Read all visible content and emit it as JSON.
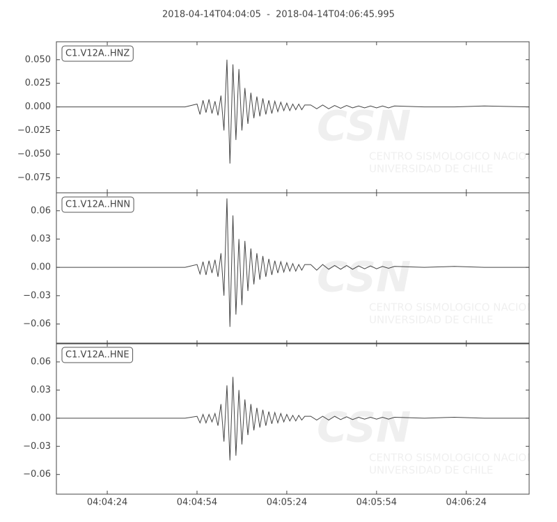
{
  "chart_data": {
    "type": "line",
    "title": "2018-04-14T04:04:05  -  2018-04-14T04:06:45.995",
    "watermark": {
      "logo": "CSN",
      "line1": "CENTRO SISMOLOGICO NACIONAL",
      "line2": "UNIVERSIDAD DE CHILE"
    },
    "xlim": [
      "04:04:07",
      "04:06:45"
    ],
    "xticks": [
      "04:04:24",
      "04:04:54",
      "04:05:24",
      "04:05:54",
      "04:06:24"
    ],
    "x": [
      "04:04:07",
      "04:04:20",
      "04:04:35",
      "04:04:50",
      "04:04:54",
      "04:04:55",
      "04:04:56",
      "04:04:57",
      "04:04:58",
      "04:04:59",
      "04:05:00",
      "04:05:01",
      "04:05:02",
      "04:05:03",
      "04:05:04",
      "04:05:05",
      "04:05:06",
      "04:05:07",
      "04:05:08",
      "04:05:09",
      "04:05:10",
      "04:05:11",
      "04:05:12",
      "04:05:13",
      "04:05:14",
      "04:05:15",
      "04:05:16",
      "04:05:17",
      "04:05:18",
      "04:05:19",
      "04:05:20",
      "04:05:21",
      "04:05:22",
      "04:05:23",
      "04:05:24",
      "04:05:25",
      "04:05:26",
      "04:05:27",
      "04:05:28",
      "04:05:29",
      "04:05:30",
      "04:05:32",
      "04:05:34",
      "04:05:36",
      "04:05:38",
      "04:05:40",
      "04:05:42",
      "04:05:44",
      "04:05:46",
      "04:05:48",
      "04:05:50",
      "04:05:52",
      "04:05:54",
      "04:05:56",
      "04:05:58",
      "04:06:00",
      "04:06:10",
      "04:06:20",
      "04:06:30",
      "04:06:45"
    ],
    "series": [
      {
        "name": "C1.V12A..HNZ",
        "color": "#444444",
        "ylim": [
          -0.091,
          0.069
        ],
        "yticks": [
          {
            "value": 0.05,
            "label": "0.050"
          },
          {
            "value": 0.025,
            "label": "0.025"
          },
          {
            "value": 0,
            "label": "0.000"
          },
          {
            "value": -0.025,
            "label": "−0.025"
          },
          {
            "value": -0.05,
            "label": "−0.050"
          },
          {
            "value": -0.075,
            "label": "−0.075"
          }
        ],
        "values": [
          0,
          0,
          0,
          0,
          0.003,
          -0.008,
          0.007,
          -0.006,
          0.008,
          -0.007,
          0.006,
          -0.009,
          0.012,
          -0.025,
          0.05,
          -0.06,
          0.045,
          -0.035,
          0.04,
          -0.025,
          0.02,
          -0.018,
          0.015,
          -0.012,
          0.011,
          -0.01,
          0.009,
          -0.008,
          0.007,
          -0.007,
          0.006,
          -0.005,
          0.005,
          -0.004,
          0.004,
          -0.004,
          0.003,
          -0.003,
          0.003,
          -0.003,
          0.002,
          0.002,
          -0.002,
          0.002,
          -0.002,
          0.0015,
          -0.0015,
          0.0015,
          -0.001,
          0.001,
          -0.001,
          0.001,
          -0.001,
          0.001,
          -0.001,
          0.001,
          0,
          0,
          0.001,
          0
        ]
      },
      {
        "name": "C1.V12A..HNN",
        "color": "#444444",
        "ylim": [
          -0.081,
          0.079
        ],
        "yticks": [
          {
            "value": 0.06,
            "label": "0.06"
          },
          {
            "value": 0.03,
            "label": "0.03"
          },
          {
            "value": 0,
            "label": "0.00"
          },
          {
            "value": -0.03,
            "label": "−0.03"
          },
          {
            "value": -0.06,
            "label": "−0.06"
          }
        ],
        "values": [
          0,
          0,
          0,
          0,
          0.003,
          -0.007,
          0.006,
          -0.008,
          0.007,
          -0.006,
          0.008,
          -0.01,
          0.015,
          -0.03,
          0.073,
          -0.063,
          0.055,
          -0.05,
          0.03,
          -0.04,
          0.028,
          -0.025,
          0.02,
          -0.018,
          0.015,
          -0.013,
          0.012,
          -0.01,
          0.009,
          -0.008,
          0.007,
          -0.006,
          0.006,
          -0.005,
          0.005,
          -0.004,
          0.004,
          -0.004,
          0.003,
          -0.003,
          0.003,
          0.003,
          -0.003,
          0.003,
          -0.002,
          0.002,
          -0.002,
          0.002,
          -0.002,
          0.0015,
          -0.0015,
          0.0015,
          -0.0015,
          0.001,
          -0.001,
          0.001,
          0,
          0.001,
          0,
          0
        ]
      },
      {
        "name": "C1.V12A..HNE",
        "color": "#444444",
        "ylim": [
          -0.081,
          0.08
        ],
        "yticks": [
          {
            "value": 0.06,
            "label": "0.06"
          },
          {
            "value": 0.03,
            "label": "0.03"
          },
          {
            "value": 0,
            "label": "0.00"
          },
          {
            "value": -0.03,
            "label": "−0.03"
          },
          {
            "value": -0.06,
            "label": "−0.06"
          }
        ],
        "values": [
          0,
          0,
          0,
          0,
          0.002,
          -0.005,
          0.004,
          -0.005,
          0.004,
          -0.004,
          0.005,
          -0.008,
          0.015,
          -0.025,
          0.035,
          -0.045,
          0.044,
          -0.04,
          0.03,
          -0.028,
          0.02,
          -0.018,
          0.015,
          -0.013,
          0.011,
          -0.01,
          0.009,
          -0.008,
          0.007,
          -0.006,
          0.006,
          -0.005,
          0.005,
          -0.004,
          0.004,
          -0.003,
          0.003,
          -0.003,
          0.003,
          -0.002,
          0.002,
          0.002,
          -0.002,
          0.002,
          -0.002,
          0.002,
          -0.0015,
          0.0015,
          -0.0015,
          0.001,
          -0.001,
          0.001,
          -0.001,
          0.001,
          -0.001,
          0.001,
          0,
          0.001,
          0,
          0
        ]
      }
    ]
  }
}
